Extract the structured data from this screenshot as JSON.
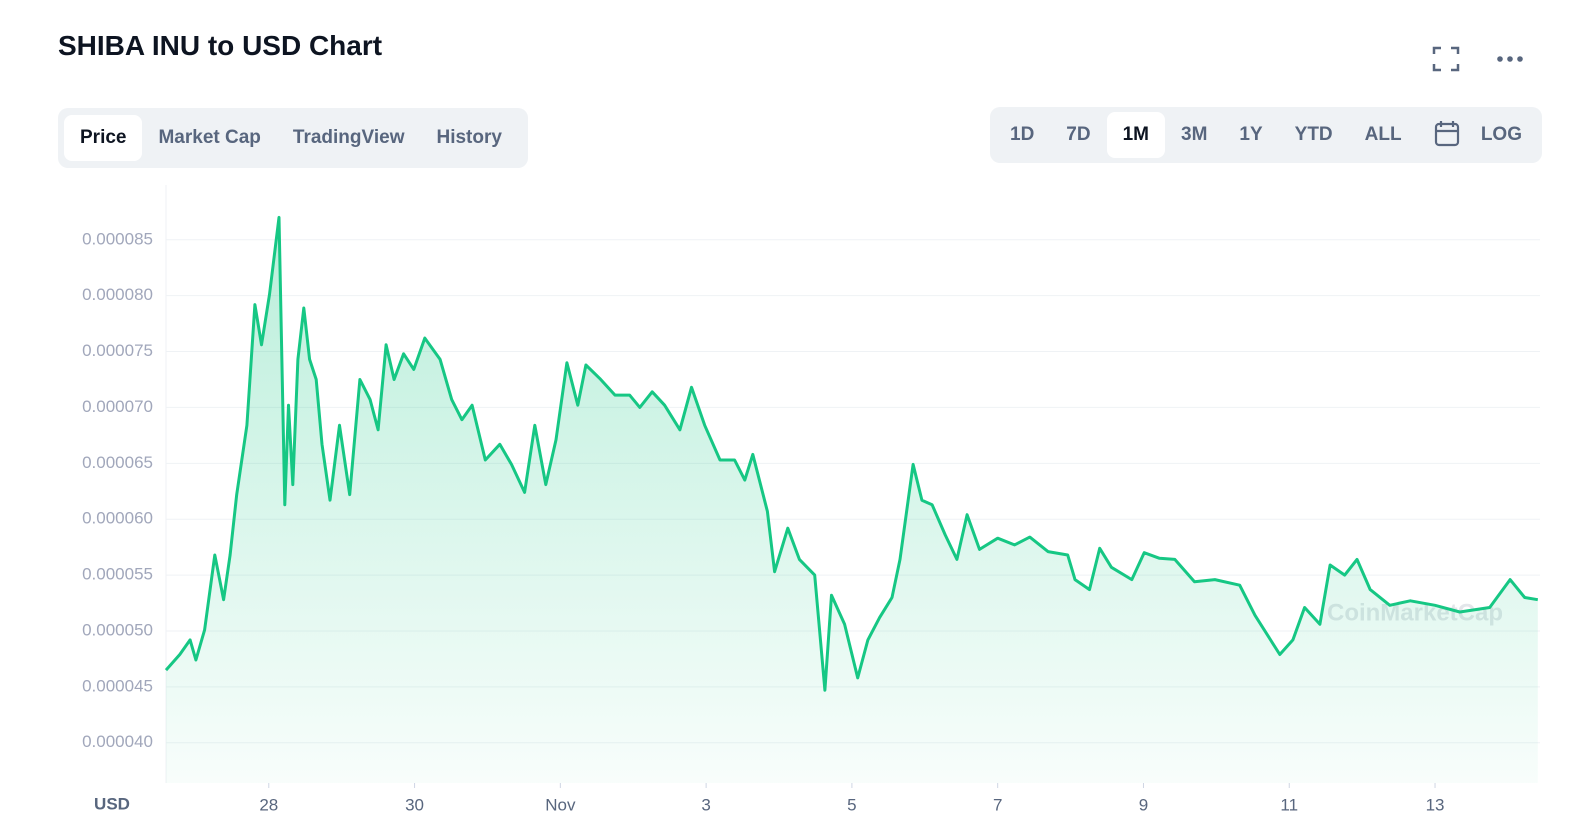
{
  "header": {
    "title": "SHIBA INU to USD Chart"
  },
  "tabs": [
    "Price",
    "Market Cap",
    "TradingView",
    "History"
  ],
  "ranges": [
    "1D",
    "7D",
    "1M",
    "3M",
    "1Y",
    "YTD",
    "ALL"
  ],
  "scale_button": "LOG",
  "chart_data": {
    "type": "line",
    "y_label": "USD",
    "watermark": "CoinMarketCap",
    "grid": true,
    "xlim": [
      26.59,
      45.44
    ],
    "xticks": [
      28,
      30,
      {
        "value": 32,
        "label": "Nov"
      },
      {
        "value": 34,
        "label": "3"
      },
      {
        "value": 36,
        "label": "5"
      },
      {
        "value": 38,
        "label": "7"
      },
      {
        "value": 40,
        "label": "9"
      },
      {
        "value": 42,
        "label": "11"
      },
      {
        "value": 44,
        "label": "13"
      }
    ],
    "ylim": [
      3.64e-05,
      8.99e-05
    ],
    "yticks": [
      {
        "value": 4e-05,
        "label": "0.000040"
      },
      4.5e-05,
      {
        "value": 5e-05,
        "label": "0.000050"
      },
      5.5e-05,
      {
        "value": 6e-05,
        "label": "0.000060"
      },
      6.5e-05,
      {
        "value": 7e-05,
        "label": "0.000070"
      },
      7.5e-05,
      {
        "value": 8e-05,
        "label": "0.000080"
      },
      8.5e-05
    ],
    "series": [
      {
        "color": "#16c784",
        "x": [
          26.59,
          26.78,
          26.92,
          27.0,
          27.12,
          27.26,
          27.38,
          27.47,
          27.56,
          27.7,
          27.81,
          27.9,
          28.01,
          28.14,
          28.22,
          28.27,
          28.33,
          28.4,
          28.48,
          28.56,
          28.65,
          28.73,
          28.84,
          28.97,
          29.11,
          29.25,
          29.39,
          29.5,
          29.61,
          29.72,
          29.85,
          29.99,
          30.14,
          30.35,
          30.51,
          30.65,
          30.79,
          30.97,
          31.17,
          31.33,
          31.51,
          31.65,
          31.8,
          31.94,
          32.09,
          32.24,
          32.35,
          32.54,
          32.75,
          32.95,
          33.09,
          33.26,
          33.43,
          33.64,
          33.8,
          33.98,
          34.19,
          34.39,
          34.53,
          34.64,
          34.84,
          34.94,
          35.12,
          35.28,
          35.49,
          35.63,
          35.72,
          35.9,
          36.08,
          36.22,
          36.38,
          36.55,
          36.66,
          36.84,
          36.96,
          37.1,
          37.28,
          37.44,
          37.58,
          37.75,
          38.0,
          38.23,
          38.44,
          38.69,
          38.96,
          39.06,
          39.26,
          39.4,
          39.56,
          39.84,
          40.01,
          40.22,
          40.43,
          40.7,
          40.98,
          41.32,
          41.53,
          41.87,
          42.05,
          42.21,
          42.42,
          42.56,
          42.76,
          42.93,
          43.11,
          43.38,
          43.66,
          44.0,
          44.34,
          44.75,
          45.03,
          45.23,
          45.41
        ],
        "values": [
          4.65e-05,
          4.79e-05,
          4.92e-05,
          4.74e-05,
          5.01e-05,
          5.68e-05,
          5.28e-05,
          5.68e-05,
          6.22e-05,
          6.84e-05,
          7.92e-05,
          7.56e-05,
          8.01e-05,
          8.7e-05,
          6.13e-05,
          7.02e-05,
          6.31e-05,
          7.43e-05,
          7.89e-05,
          7.43e-05,
          7.25e-05,
          6.67e-05,
          6.17e-05,
          6.84e-05,
          6.22e-05,
          7.25e-05,
          7.07e-05,
          6.8e-05,
          7.56e-05,
          7.25e-05,
          7.48e-05,
          7.34e-05,
          7.62e-05,
          7.43e-05,
          7.07e-05,
          6.89e-05,
          7.02e-05,
          6.53e-05,
          6.67e-05,
          6.49e-05,
          6.24e-05,
          6.84e-05,
          6.31e-05,
          6.71e-05,
          7.4e-05,
          7.02e-05,
          7.38e-05,
          7.26e-05,
          7.11e-05,
          7.11e-05,
          7e-05,
          7.14e-05,
          7.02e-05,
          6.8e-05,
          7.18e-05,
          6.84e-05,
          6.53e-05,
          6.53e-05,
          6.35e-05,
          6.58e-05,
          6.07e-05,
          5.53e-05,
          5.92e-05,
          5.64e-05,
          5.5e-05,
          4.47e-05,
          5.32e-05,
          5.06e-05,
          4.58e-05,
          4.92e-05,
          5.12e-05,
          5.3e-05,
          5.64e-05,
          6.49e-05,
          6.17e-05,
          6.13e-05,
          5.86e-05,
          5.64e-05,
          6.04e-05,
          5.73e-05,
          5.83e-05,
          5.77e-05,
          5.84e-05,
          5.71e-05,
          5.68e-05,
          5.46e-05,
          5.37e-05,
          5.74e-05,
          5.57e-05,
          5.46e-05,
          5.7e-05,
          5.65e-05,
          5.64e-05,
          5.44e-05,
          5.46e-05,
          5.41e-05,
          5.14e-05,
          4.79e-05,
          4.92e-05,
          5.21e-05,
          5.06e-05,
          5.59e-05,
          5.5e-05,
          5.64e-05,
          5.37e-05,
          5.23e-05,
          5.27e-05,
          5.23e-05,
          5.17e-05,
          5.21e-05,
          5.46e-05,
          5.3e-05,
          5.28e-05
        ]
      }
    ]
  }
}
